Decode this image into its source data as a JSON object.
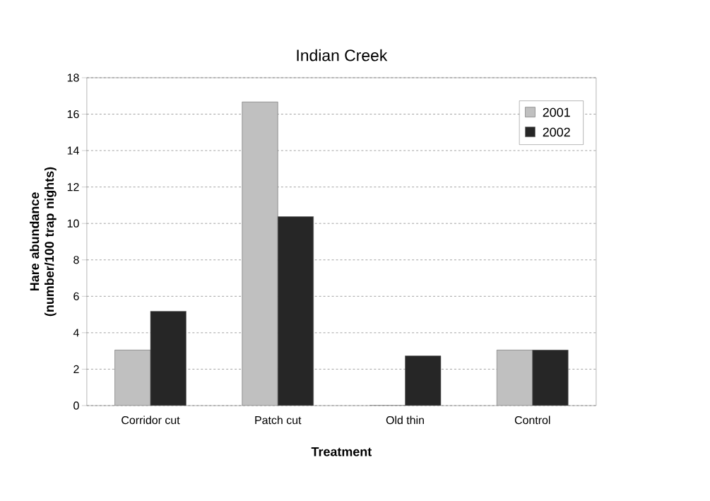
{
  "chart_data": {
    "type": "bar",
    "title": "Indian Creek",
    "xlabel": "Treatment",
    "ylabel": "Hare abundance (number/100 trap nights)",
    "categories": [
      "Corridor cut",
      "Patch cut",
      "Old thin",
      "Control"
    ],
    "series": [
      {
        "name": "2001",
        "color": "#c0c0c0",
        "values": [
          3.05,
          16.67,
          0,
          3.05
        ]
      },
      {
        "name": "2002",
        "color": "#262626",
        "values": [
          5.18,
          10.38,
          2.73,
          3.05
        ]
      }
    ],
    "ylim": [
      0,
      18
    ],
    "yticks": [
      0,
      2,
      4,
      6,
      8,
      10,
      12,
      14,
      16,
      18
    ],
    "grid": "y",
    "legend": "top right"
  }
}
